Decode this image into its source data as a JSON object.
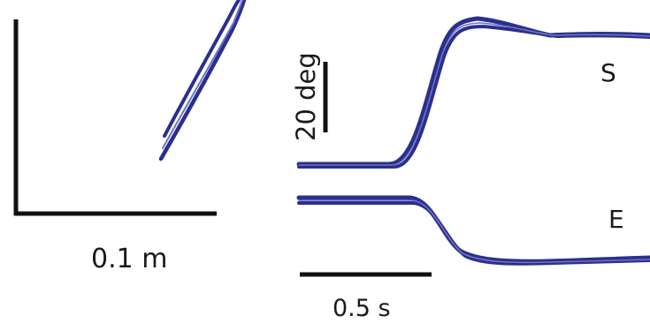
{
  "left_panel": {
    "scale_label": "0.1 m"
  },
  "right_panel": {
    "angle_scale_label": "20 deg",
    "time_scale_label": "0.5 s",
    "trace_labels": {
      "shoulder": "S",
      "elbow": "E"
    }
  },
  "colors": {
    "trace": "#2b2f8c",
    "trace_highlight": "#6d72c4",
    "scale_bar": "#111111",
    "text": "#1a1a1a"
  }
}
